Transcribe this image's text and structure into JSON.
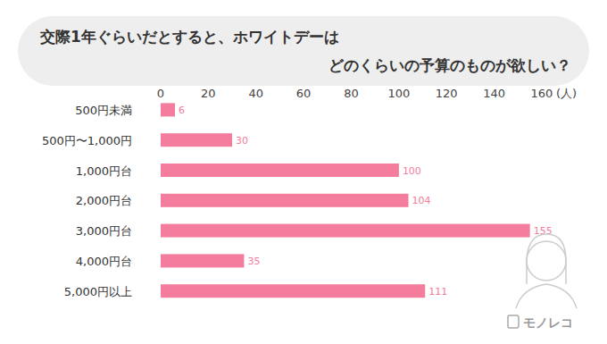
{
  "chart_data": {
    "type": "bar",
    "orientation": "horizontal",
    "title": "交際1年ぐらいだとすると、ホワイトデーは\nどのくらいの予算のものが欲しい？",
    "x_label": "(人)",
    "source": "モノレコ",
    "categories": [
      "500円未満",
      "500円〜1,000円",
      "1,000円台",
      "2,000円台",
      "3,000円台",
      "4,000円台",
      "5,000円以上"
    ],
    "values": [
      6,
      30,
      100,
      104,
      155,
      35,
      111
    ],
    "color": "#f47c9c",
    "xlim": [
      0,
      160
    ],
    "xticks": [
      0,
      20,
      40,
      60,
      80,
      100,
      120,
      140,
      160
    ],
    "grid": false,
    "data_labels": true
  }
}
